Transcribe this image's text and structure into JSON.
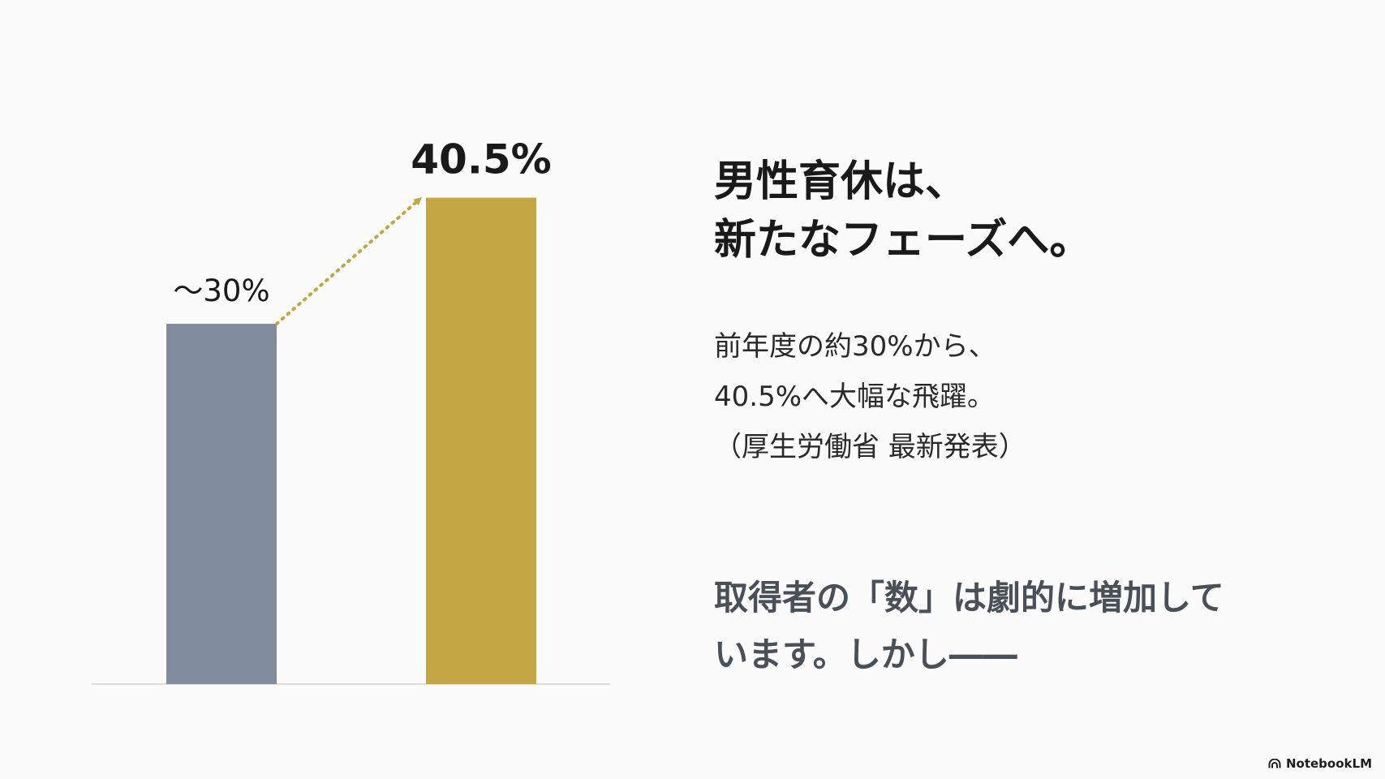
{
  "chart_data": {
    "type": "bar",
    "categories": [
      "",
      ""
    ],
    "values": [
      30,
      40.5
    ],
    "value_labels": [
      "〜30%",
      "40.5%"
    ],
    "colors": [
      "#818c9c",
      "#c4a745"
    ],
    "ylim": [
      0,
      50
    ],
    "grid": false,
    "annotation": "dotted arrow from first bar to second bar",
    "arrow_color": "#c4a745"
  },
  "headline": {
    "line1": "男性育休は、",
    "line2": "新たなフェーズへ。"
  },
  "body": {
    "line1": "前年度の約30%から、",
    "line2": "40.5%へ大幅な飛躍。",
    "line3": "（厚生労働省 最新発表）"
  },
  "conclusion": {
    "line1": "取得者の「数」は劇的に増加して",
    "line2": "います。しかし――"
  },
  "brand": {
    "label": "NotebookLM",
    "icon": "notebooklm-logo-icon"
  }
}
